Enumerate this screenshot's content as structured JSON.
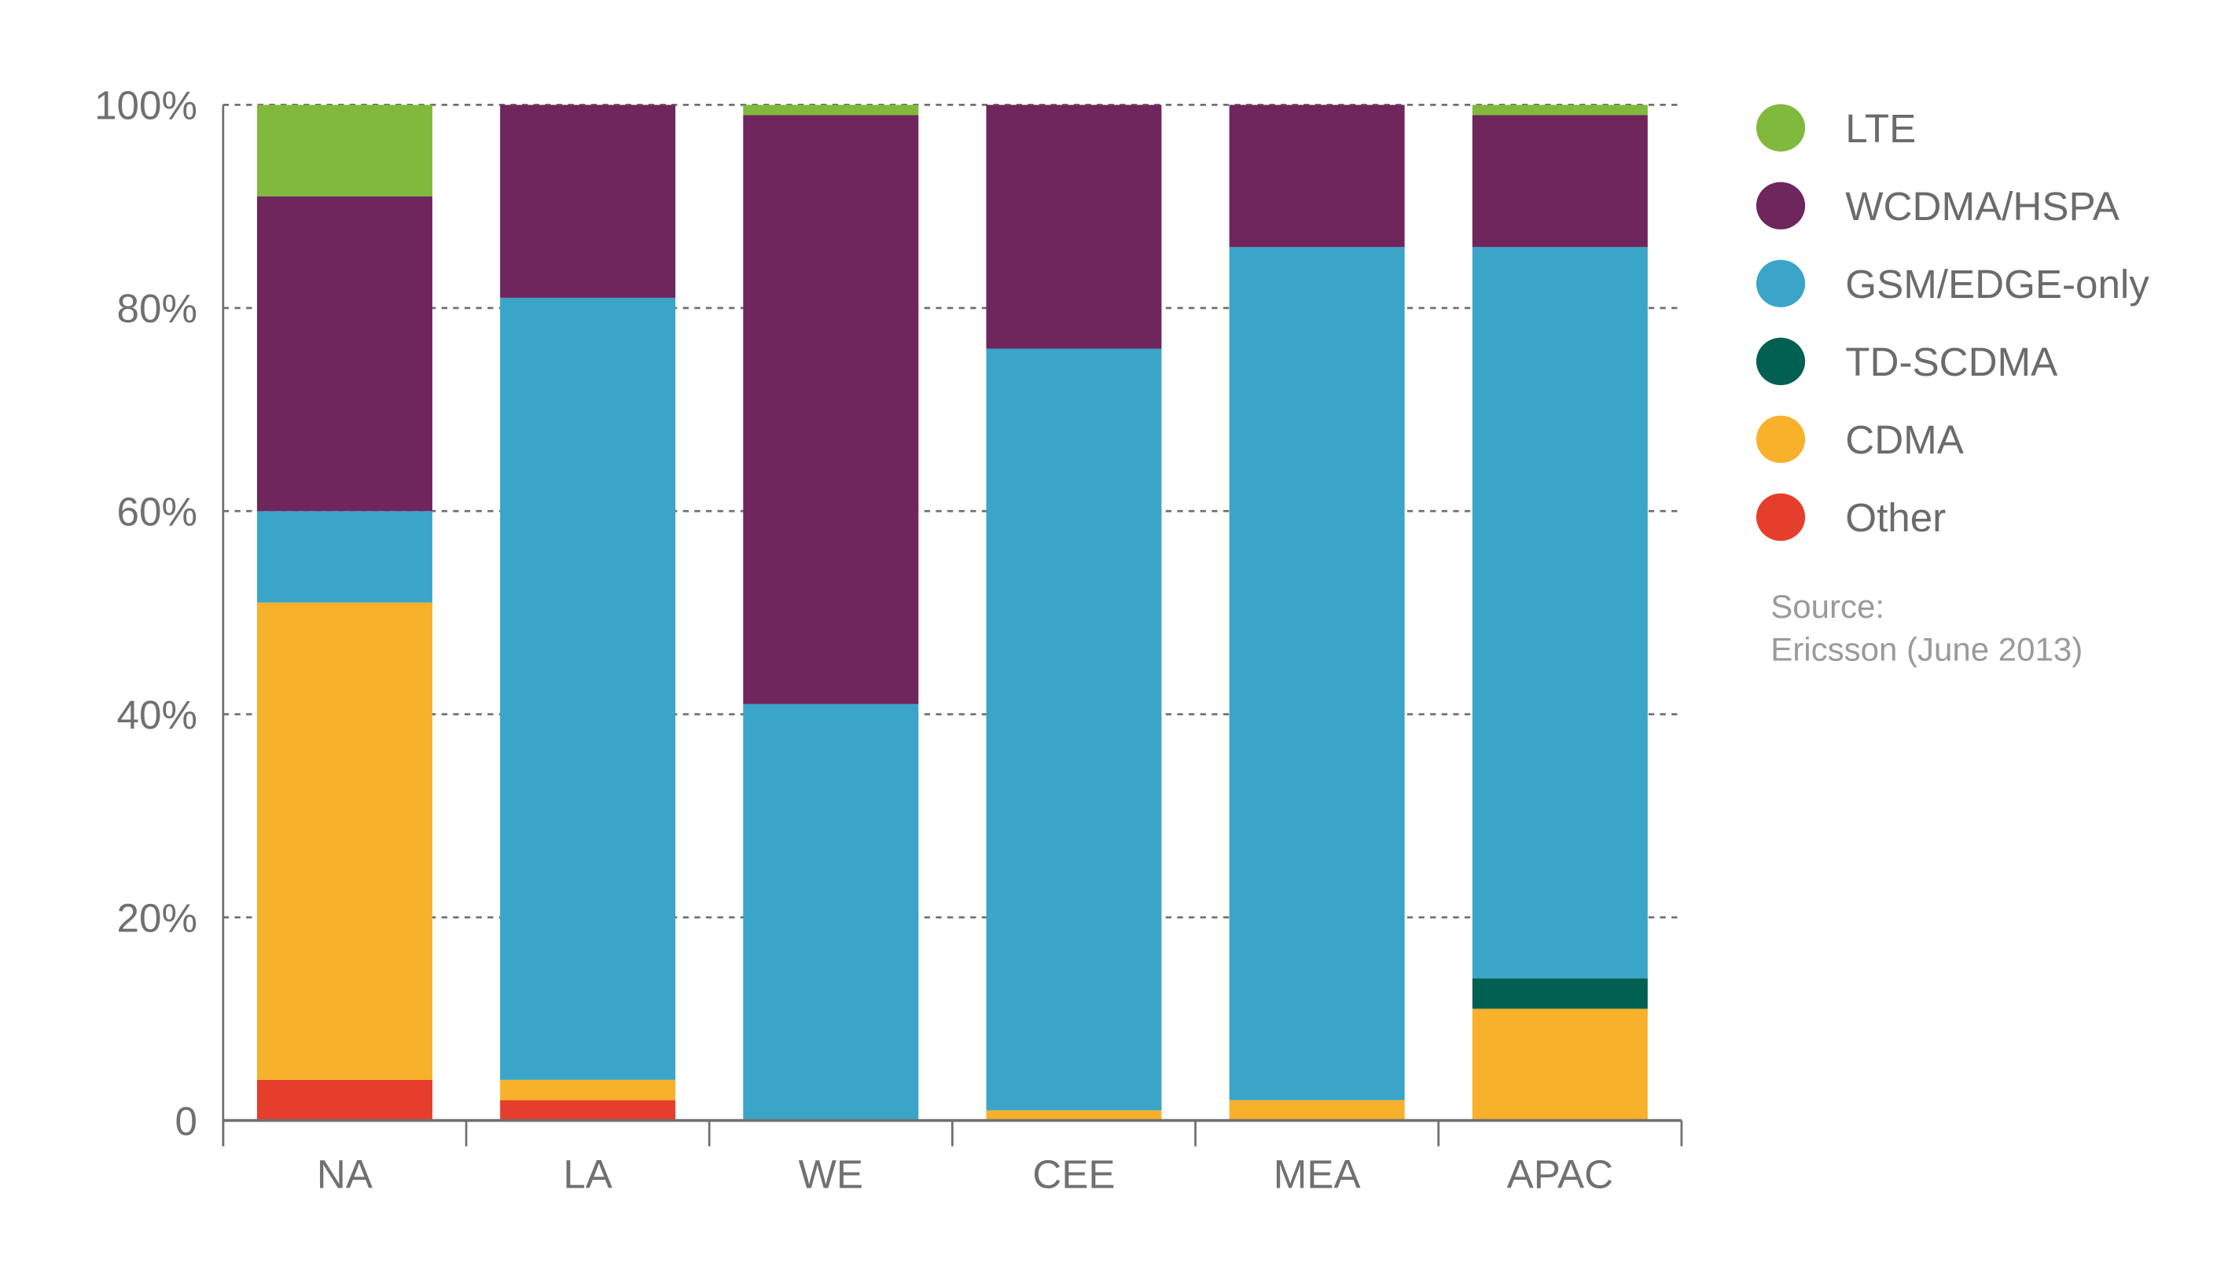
{
  "chart_data": {
    "type": "bar",
    "stacked": true,
    "categories": [
      "NA",
      "LA",
      "WE",
      "CEE",
      "MEA",
      "APAC"
    ],
    "series": [
      {
        "name": "Other",
        "color": "#e63e2c",
        "values": [
          4,
          2,
          0,
          0,
          0,
          0
        ]
      },
      {
        "name": "CDMA",
        "color": "#f7b12a",
        "values": [
          47,
          2,
          0,
          1,
          2,
          11
        ]
      },
      {
        "name": "TD-SCDMA",
        "color": "#026053",
        "values": [
          0,
          0,
          0,
          0,
          0,
          3
        ]
      },
      {
        "name": "GSM/EDGE-only",
        "color": "#3aa5c8",
        "values": [
          9,
          77,
          41,
          75,
          84,
          72
        ]
      },
      {
        "name": "WCDMA/HSPA",
        "color": "#6f265c",
        "values": [
          31,
          19,
          58,
          24,
          14,
          13
        ]
      },
      {
        "name": "LTE",
        "color": "#80b93b",
        "values": [
          9,
          0,
          1,
          0,
          0,
          1
        ]
      }
    ],
    "legend_order": [
      "LTE",
      "WCDMA/HSPA",
      "GSM/EDGE-only",
      "TD-SCDMA",
      "CDMA",
      "Other"
    ],
    "y_ticks": [
      "0",
      "20%",
      "40%",
      "60%",
      "80%",
      "100%"
    ],
    "ylim": [
      0,
      100
    ],
    "grid": "dashed horizontal",
    "legend_position": "right",
    "source_label": "Source:",
    "source_text": "Ericsson (June 2013)"
  }
}
